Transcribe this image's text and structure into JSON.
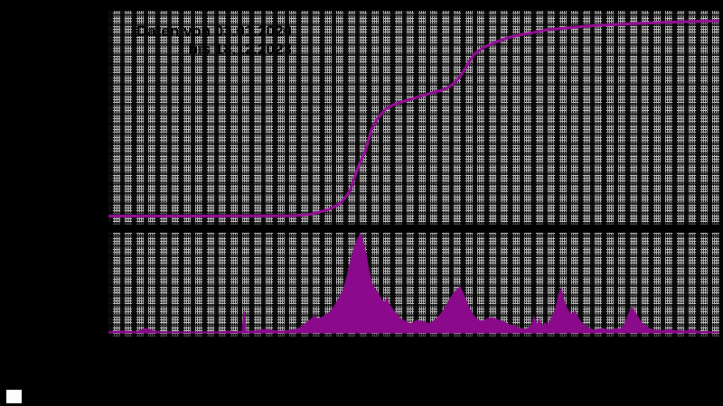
{
  "annotation": {
    "line1": "Daten von 03.01.2020",
    "line2": "bis 18.12.2023"
  },
  "colors": {
    "background": "#000000",
    "grid_fine": "#b4b4b4",
    "cumulative_line": "#990d99",
    "daily_fill": "#8b0a8b",
    "annotation_text": "#000000",
    "legend_swatch": "#fdfdfd"
  },
  "legend": {
    "marker": "white-square"
  },
  "chart_data": [
    {
      "type": "line",
      "panel": "top",
      "name": "cumulative-total",
      "title_lines": [
        "Daten von 03.01.2020",
        "bis 18.12.2023"
      ],
      "x_range_dates": [
        "03.01.2020",
        "18.12.2023"
      ],
      "axis_labels_visible": false,
      "grid": "dense-minor-grid",
      "legend_position": "none",
      "units": "normalized [x: 0-1 across date range, y: 0-1 fraction of final cumulative value]",
      "points": [
        [
          0.0,
          0.04
        ],
        [
          0.15,
          0.04
        ],
        [
          0.3,
          0.041
        ],
        [
          0.33,
          0.048
        ],
        [
          0.36,
          0.07
        ],
        [
          0.38,
          0.1
        ],
        [
          0.395,
          0.155
        ],
        [
          0.41,
          0.28
        ],
        [
          0.42,
          0.34
        ],
        [
          0.43,
          0.44
        ],
        [
          0.44,
          0.495
        ],
        [
          0.455,
          0.545
        ],
        [
          0.47,
          0.565
        ],
        [
          0.49,
          0.582
        ],
        [
          0.51,
          0.6
        ],
        [
          0.53,
          0.617
        ],
        [
          0.545,
          0.628
        ],
        [
          0.555,
          0.64
        ],
        [
          0.565,
          0.66
        ],
        [
          0.575,
          0.69
        ],
        [
          0.585,
          0.735
        ],
        [
          0.592,
          0.77
        ],
        [
          0.6,
          0.8
        ],
        [
          0.615,
          0.83
        ],
        [
          0.635,
          0.855
        ],
        [
          0.655,
          0.875
        ],
        [
          0.675,
          0.888
        ],
        [
          0.695,
          0.898
        ],
        [
          0.715,
          0.91
        ],
        [
          0.75,
          0.92
        ],
        [
          0.79,
          0.93
        ],
        [
          0.84,
          0.937
        ],
        [
          0.89,
          0.944
        ],
        [
          0.94,
          0.949
        ],
        [
          1.0,
          0.953
        ]
      ]
    },
    {
      "type": "area",
      "panel": "bottom",
      "name": "daily-values",
      "axis_labels_visible": false,
      "grid": "dense-minor-grid",
      "legend_position": "none",
      "units": "x: 0-676 panel px across date range; h: px height above baseline (panel max 110)",
      "points": [
        [
          0,
          1
        ],
        [
          10,
          2
        ],
        [
          20,
          2
        ],
        [
          30,
          1
        ],
        [
          36,
          3
        ],
        [
          40,
          5
        ],
        [
          45,
          4
        ],
        [
          50,
          2
        ],
        [
          60,
          1
        ],
        [
          80,
          1
        ],
        [
          100,
          1
        ],
        [
          120,
          1
        ],
        [
          135,
          2
        ],
        [
          142,
          1
        ],
        [
          148,
          2
        ],
        [
          150,
          25
        ],
        [
          152,
          2
        ],
        [
          160,
          2
        ],
        [
          168,
          3
        ],
        [
          175,
          4
        ],
        [
          180,
          3
        ],
        [
          188,
          2
        ],
        [
          195,
          2
        ],
        [
          202,
          3
        ],
        [
          208,
          4
        ],
        [
          212,
          6
        ],
        [
          216,
          9
        ],
        [
          220,
          12
        ],
        [
          224,
          15
        ],
        [
          228,
          18
        ],
        [
          232,
          16
        ],
        [
          236,
          17
        ],
        [
          240,
          20
        ],
        [
          244,
          22
        ],
        [
          248,
          27
        ],
        [
          252,
          33
        ],
        [
          256,
          40
        ],
        [
          260,
          48
        ],
        [
          264,
          62
        ],
        [
          268,
          80
        ],
        [
          272,
          95
        ],
        [
          276,
          105
        ],
        [
          279,
          110
        ],
        [
          282,
          100
        ],
        [
          285,
          88
        ],
        [
          288,
          70
        ],
        [
          291,
          56
        ],
        [
          294,
          50
        ],
        [
          297,
          46
        ],
        [
          300,
          41
        ],
        [
          303,
          36
        ],
        [
          306,
          34
        ],
        [
          308,
          39
        ],
        [
          310,
          33
        ],
        [
          314,
          27
        ],
        [
          318,
          22
        ],
        [
          322,
          17
        ],
        [
          326,
          14
        ],
        [
          330,
          12
        ],
        [
          334,
          10
        ],
        [
          338,
          12
        ],
        [
          342,
          14
        ],
        [
          346,
          13
        ],
        [
          350,
          12
        ],
        [
          354,
          10
        ],
        [
          358,
          12
        ],
        [
          362,
          15
        ],
        [
          366,
          19
        ],
        [
          370,
          24
        ],
        [
          374,
          31
        ],
        [
          378,
          38
        ],
        [
          382,
          44
        ],
        [
          386,
          48
        ],
        [
          389,
          51
        ],
        [
          392,
          45
        ],
        [
          395,
          38
        ],
        [
          398,
          30
        ],
        [
          401,
          24
        ],
        [
          404,
          19
        ],
        [
          408,
          15
        ],
        [
          412,
          13
        ],
        [
          416,
          14
        ],
        [
          420,
          16
        ],
        [
          424,
          17
        ],
        [
          428,
          16
        ],
        [
          432,
          14
        ],
        [
          436,
          13
        ],
        [
          440,
          11
        ],
        [
          444,
          9
        ],
        [
          448,
          8
        ],
        [
          452,
          6
        ],
        [
          456,
          5
        ],
        [
          460,
          4
        ],
        [
          464,
          5
        ],
        [
          468,
          8
        ],
        [
          471,
          18
        ],
        [
          474,
          9
        ],
        [
          477,
          15
        ],
        [
          480,
          7
        ],
        [
          483,
          11
        ],
        [
          486,
          9
        ],
        [
          489,
          14
        ],
        [
          492,
          20
        ],
        [
          495,
          28
        ],
        [
          498,
          42
        ],
        [
          501,
          50
        ],
        [
          504,
          36
        ],
        [
          507,
          28
        ],
        [
          510,
          23
        ],
        [
          513,
          20
        ],
        [
          516,
          24
        ],
        [
          519,
          18
        ],
        [
          522,
          13
        ],
        [
          525,
          10
        ],
        [
          528,
          7
        ],
        [
          531,
          6
        ],
        [
          534,
          4
        ],
        [
          538,
          3
        ],
        [
          542,
          4
        ],
        [
          546,
          5
        ],
        [
          550,
          4
        ],
        [
          554,
          3
        ],
        [
          558,
          4
        ],
        [
          562,
          5
        ],
        [
          566,
          4
        ],
        [
          570,
          8
        ],
        [
          573,
          14
        ],
        [
          576,
          22
        ],
        [
          579,
          28
        ],
        [
          582,
          24
        ],
        [
          585,
          19
        ],
        [
          588,
          14
        ],
        [
          591,
          10
        ],
        [
          594,
          8
        ],
        [
          597,
          6
        ],
        [
          600,
          4
        ],
        [
          604,
          3
        ],
        [
          608,
          3
        ],
        [
          612,
          2
        ],
        [
          616,
          3
        ],
        [
          620,
          4
        ],
        [
          624,
          3
        ],
        [
          628,
          2
        ],
        [
          632,
          3
        ],
        [
          636,
          2
        ],
        [
          640,
          2
        ],
        [
          644,
          4
        ],
        [
          648,
          3
        ],
        [
          652,
          2
        ],
        [
          656,
          1
        ],
        [
          660,
          2
        ],
        [
          664,
          1
        ],
        [
          668,
          1
        ],
        [
          672,
          1
        ],
        [
          676,
          1
        ]
      ]
    }
  ]
}
